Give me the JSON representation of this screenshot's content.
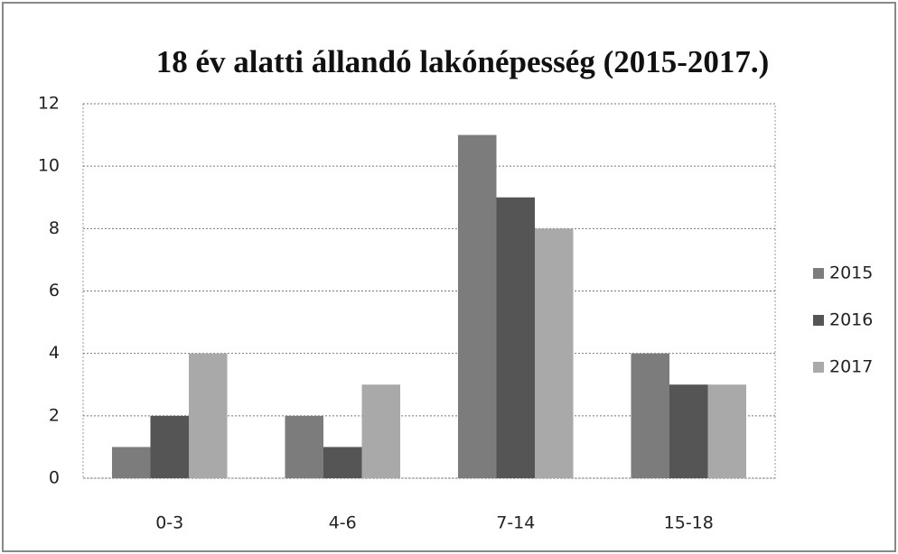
{
  "chart_data": {
    "type": "bar",
    "title": "18 év alatti állandó lakónépesség (2015-2017.)",
    "categories": [
      "0-3",
      "4-6",
      "7-14",
      "15-18"
    ],
    "series": [
      {
        "name": "2015",
        "color": "#7c7c7c",
        "values": [
          1,
          2,
          11,
          4
        ]
      },
      {
        "name": "2016",
        "color": "#555555",
        "values": [
          2,
          1,
          9,
          3
        ]
      },
      {
        "name": "2017",
        "color": "#a9a9a9",
        "values": [
          4,
          3,
          8,
          3
        ]
      }
    ],
    "ylim": [
      0,
      12
    ],
    "yticks": [
      0,
      2,
      4,
      6,
      8,
      10,
      12
    ],
    "grid": true,
    "legend": "right"
  }
}
